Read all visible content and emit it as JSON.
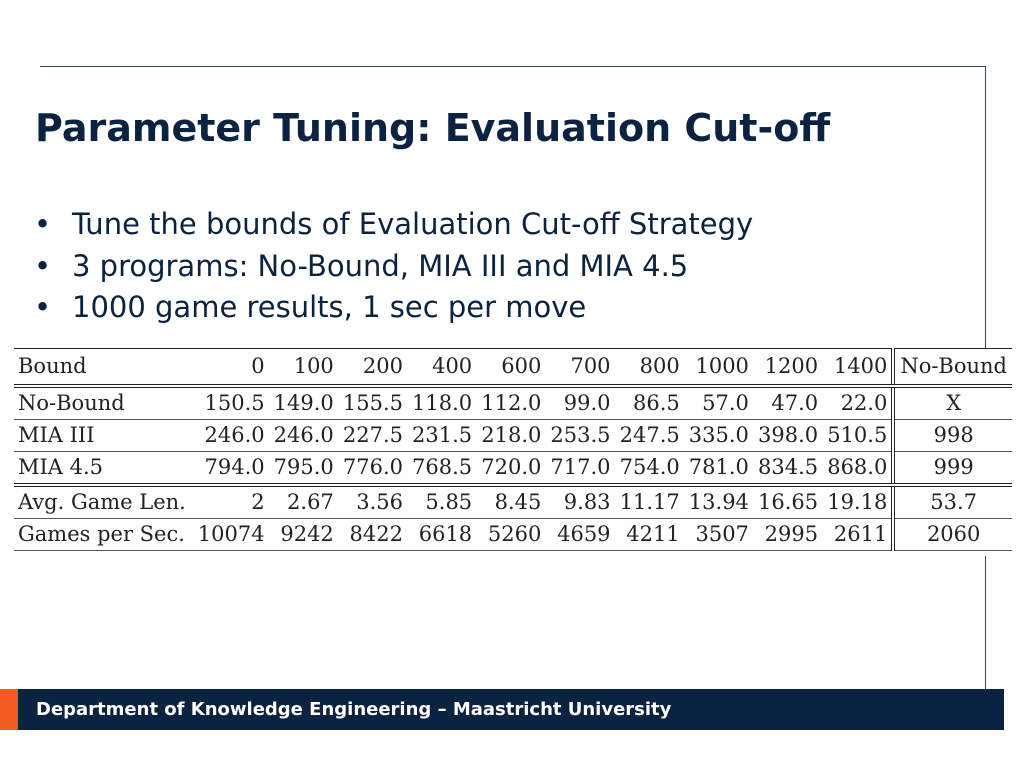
{
  "slide": {
    "title": "Parameter Tuning: Evaluation Cut-off",
    "bullets": [
      "Tune the bounds of Evaluation Cut-off Strategy",
      "3 programs: No-Bound, MIA III and MIA 4.5",
      "1000 game results, 1 sec per move"
    ]
  },
  "table": {
    "header": [
      "Bound",
      "0",
      "100",
      "200",
      "400",
      "600",
      "700",
      "800",
      "1000",
      "1200",
      "1400",
      "No-Bound"
    ],
    "rows": [
      [
        "No-Bound",
        "150.5",
        "149.0",
        "155.5",
        "118.0",
        "112.0",
        "99.0",
        "86.5",
        "57.0",
        "47.0",
        "22.0",
        "X"
      ],
      [
        "MIA III",
        "246.0",
        "246.0",
        "227.5",
        "231.5",
        "218.0",
        "253.5",
        "247.5",
        "335.0",
        "398.0",
        "510.5",
        "998"
      ],
      [
        "MIA 4.5",
        "794.0",
        "795.0",
        "776.0",
        "768.5",
        "720.0",
        "717.0",
        "754.0",
        "781.0",
        "834.5",
        "868.0",
        "999"
      ],
      [
        "Avg. Game Len.",
        "2",
        "2.67",
        "3.56",
        "5.85",
        "8.45",
        "9.83",
        "11.17",
        "13.94",
        "16.65",
        "19.18",
        "53.7"
      ],
      [
        "Games per Sec.",
        "10074",
        "9242",
        "8422",
        "6618",
        "5260",
        "4659",
        "4211",
        "3507",
        "2995",
        "2611",
        "2060"
      ]
    ]
  },
  "footer": {
    "text": "Department of Knowledge Engineering – Maastricht University"
  },
  "colors": {
    "navy": "#0b2240",
    "orange": "#f15a22"
  }
}
